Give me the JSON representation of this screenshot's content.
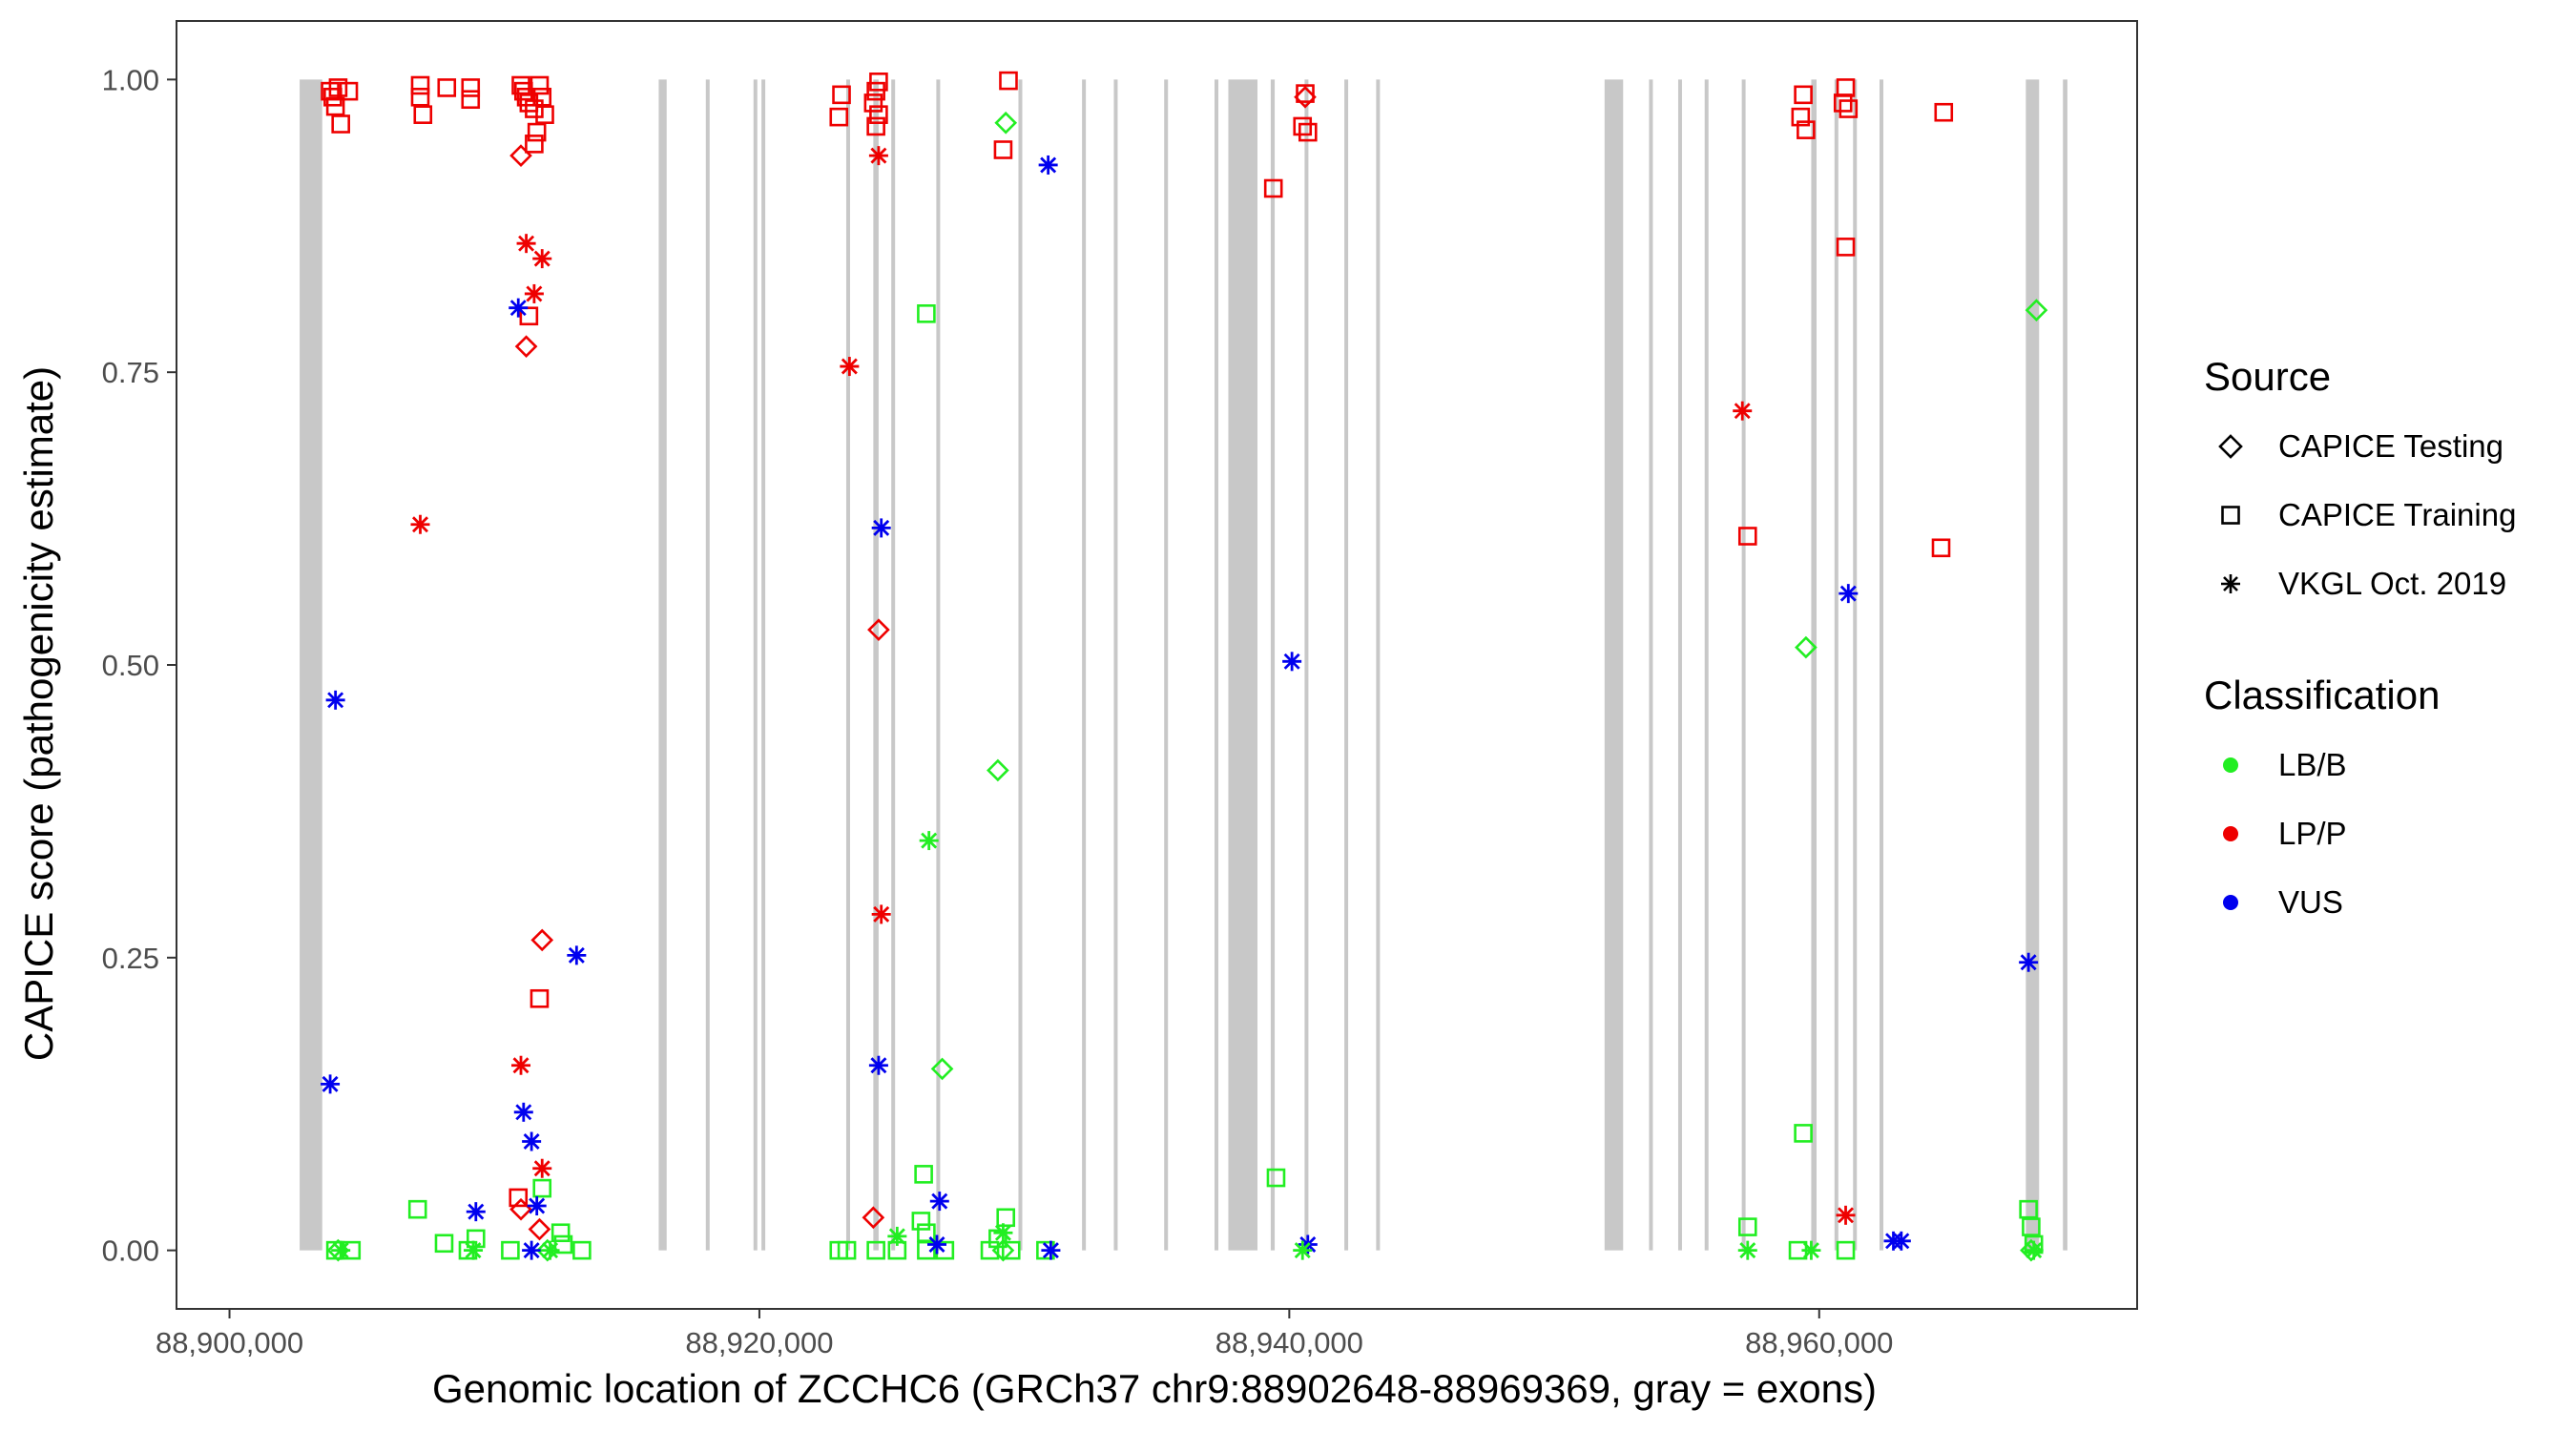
{
  "chart_data": {
    "type": "scatter",
    "title": "",
    "xlabel": "Genomic location of ZCCHC6 (GRCh37 chr9:88902648-88969369, gray = exons)",
    "ylabel": "CAPICE score (pathogenicity estimate)",
    "xlim": [
      88898000,
      88972000
    ],
    "ylim": [
      -0.05,
      1.05
    ],
    "x_ticks": [
      88900000,
      88920000,
      88940000,
      88960000
    ],
    "x_tick_labels": [
      "88,900,000",
      "88,920,000",
      "88,940,000",
      "88,960,000"
    ],
    "y_ticks": [
      0,
      0.25,
      0.5,
      0.75,
      1
    ],
    "y_tick_labels": [
      "0.00",
      "0.25",
      "0.50",
      "0.75",
      "1.00"
    ],
    "exons": [
      [
        88902648,
        88903500
      ],
      [
        88916200,
        88916500
      ],
      [
        88918000,
        88918100
      ],
      [
        88919800,
        88919900
      ],
      [
        88920100,
        88920200
      ],
      [
        88923300,
        88923400
      ],
      [
        88924300,
        88924500
      ],
      [
        88925000,
        88925100
      ],
      [
        88926700,
        88926800
      ],
      [
        88929800,
        88929900
      ],
      [
        88932200,
        88932300
      ],
      [
        88933400,
        88933500
      ],
      [
        88935300,
        88935400
      ],
      [
        88937200,
        88937300
      ],
      [
        88937700,
        88938800
      ],
      [
        88939300,
        88939450
      ],
      [
        88940600,
        88940700
      ],
      [
        88942100,
        88942200
      ],
      [
        88943300,
        88943400
      ],
      [
        88951900,
        88952600
      ],
      [
        88953600,
        88953700
      ],
      [
        88954700,
        88954800
      ],
      [
        88955700,
        88955800
      ],
      [
        88957100,
        88957200
      ],
      [
        88959700,
        88959900
      ],
      [
        88960600,
        88960700
      ],
      [
        88961300,
        88961400
      ],
      [
        88962300,
        88962400
      ],
      [
        88967800,
        88968300
      ],
      [
        88969200,
        88969369
      ]
    ],
    "legend": {
      "source_title": "Source",
      "source_entries": [
        {
          "label": "CAPICE Testing",
          "shape": "diamond"
        },
        {
          "label": "CAPICE Training",
          "shape": "square"
        },
        {
          "label": "VKGL Oct. 2019",
          "shape": "asterisk"
        }
      ],
      "classification_title": "Classification",
      "classification_entries": [
        {
          "label": "LB/B",
          "color": "#22ee22"
        },
        {
          "label": "LP/P",
          "color": "#ee0000"
        },
        {
          "label": "VUS",
          "color": "#0000ee"
        }
      ]
    },
    "series": [
      {
        "name": "CAPICE Testing",
        "shape": "diamond",
        "points": [
          {
            "x": 88911000,
            "y": 0.935,
            "class": "LP/P"
          },
          {
            "x": 88911200,
            "y": 0.772,
            "class": "LP/P"
          },
          {
            "x": 88911800,
            "y": 0.265,
            "class": "LP/P"
          },
          {
            "x": 88911000,
            "y": 0.035,
            "class": "LP/P"
          },
          {
            "x": 88911700,
            "y": 0.018,
            "class": "LP/P"
          },
          {
            "x": 88924500,
            "y": 0.53,
            "class": "LP/P"
          },
          {
            "x": 88924300,
            "y": 0.028,
            "class": "LP/P"
          },
          {
            "x": 88940600,
            "y": 0.985,
            "class": "LP/P"
          },
          {
            "x": 88929300,
            "y": 0.963,
            "class": "LB/B"
          },
          {
            "x": 88929000,
            "y": 0.41,
            "class": "LB/B"
          },
          {
            "x": 88926900,
            "y": 0.155,
            "class": "LB/B"
          },
          {
            "x": 88959500,
            "y": 0.515,
            "class": "LB/B"
          },
          {
            "x": 88968200,
            "y": 0.803,
            "class": "LB/B"
          },
          {
            "x": 88904100,
            "y": 0.0,
            "class": "LB/B"
          },
          {
            "x": 88912000,
            "y": 0.0,
            "class": "LB/B"
          },
          {
            "x": 88929200,
            "y": 0.0,
            "class": "LB/B"
          },
          {
            "x": 88968000,
            "y": 0.0,
            "class": "LB/B"
          }
        ]
      },
      {
        "name": "CAPICE Training",
        "shape": "square",
        "points": [
          {
            "x": 88903800,
            "y": 0.99,
            "class": "LP/P"
          },
          {
            "x": 88903900,
            "y": 0.985,
            "class": "LP/P"
          },
          {
            "x": 88904100,
            "y": 0.993,
            "class": "LP/P"
          },
          {
            "x": 88904500,
            "y": 0.99,
            "class": "LP/P"
          },
          {
            "x": 88904000,
            "y": 0.977,
            "class": "LP/P"
          },
          {
            "x": 88904200,
            "y": 0.962,
            "class": "LP/P"
          },
          {
            "x": 88907200,
            "y": 0.995,
            "class": "LP/P"
          },
          {
            "x": 88907200,
            "y": 0.985,
            "class": "LP/P"
          },
          {
            "x": 88907300,
            "y": 0.97,
            "class": "LP/P"
          },
          {
            "x": 88908200,
            "y": 0.993,
            "class": "LP/P"
          },
          {
            "x": 88909100,
            "y": 0.993,
            "class": "LP/P"
          },
          {
            "x": 88909100,
            "y": 0.983,
            "class": "LP/P"
          },
          {
            "x": 88911000,
            "y": 0.995,
            "class": "LP/P"
          },
          {
            "x": 88911100,
            "y": 0.99,
            "class": "LP/P"
          },
          {
            "x": 88911200,
            "y": 0.985,
            "class": "LP/P"
          },
          {
            "x": 88911300,
            "y": 0.98,
            "class": "LP/P"
          },
          {
            "x": 88911500,
            "y": 0.975,
            "class": "LP/P"
          },
          {
            "x": 88911700,
            "y": 0.995,
            "class": "LP/P"
          },
          {
            "x": 88911800,
            "y": 0.985,
            "class": "LP/P"
          },
          {
            "x": 88911900,
            "y": 0.97,
            "class": "LP/P"
          },
          {
            "x": 88911600,
            "y": 0.955,
            "class": "LP/P"
          },
          {
            "x": 88911500,
            "y": 0.945,
            "class": "LP/P"
          },
          {
            "x": 88911300,
            "y": 0.798,
            "class": "LP/P"
          },
          {
            "x": 88911700,
            "y": 0.215,
            "class": "LP/P"
          },
          {
            "x": 88910900,
            "y": 0.045,
            "class": "LP/P"
          },
          {
            "x": 88923100,
            "y": 0.987,
            "class": "LP/P"
          },
          {
            "x": 88923000,
            "y": 0.968,
            "class": "LP/P"
          },
          {
            "x": 88924500,
            "y": 0.998,
            "class": "LP/P"
          },
          {
            "x": 88924400,
            "y": 0.99,
            "class": "LP/P"
          },
          {
            "x": 88924300,
            "y": 0.98,
            "class": "LP/P"
          },
          {
            "x": 88924500,
            "y": 0.97,
            "class": "LP/P"
          },
          {
            "x": 88924400,
            "y": 0.96,
            "class": "LP/P"
          },
          {
            "x": 88929400,
            "y": 0.999,
            "class": "LP/P"
          },
          {
            "x": 88929200,
            "y": 0.94,
            "class": "LP/P"
          },
          {
            "x": 88939400,
            "y": 0.907,
            "class": "LP/P"
          },
          {
            "x": 88940600,
            "y": 0.988,
            "class": "LP/P"
          },
          {
            "x": 88940500,
            "y": 0.96,
            "class": "LP/P"
          },
          {
            "x": 88940700,
            "y": 0.955,
            "class": "LP/P"
          },
          {
            "x": 88959400,
            "y": 0.987,
            "class": "LP/P"
          },
          {
            "x": 88959300,
            "y": 0.968,
            "class": "LP/P"
          },
          {
            "x": 88959500,
            "y": 0.957,
            "class": "LP/P"
          },
          {
            "x": 88961000,
            "y": 0.993,
            "class": "LP/P"
          },
          {
            "x": 88960900,
            "y": 0.98,
            "class": "LP/P"
          },
          {
            "x": 88961100,
            "y": 0.975,
            "class": "LP/P"
          },
          {
            "x": 88961000,
            "y": 0.857,
            "class": "LP/P"
          },
          {
            "x": 88964700,
            "y": 0.972,
            "class": "LP/P"
          },
          {
            "x": 88957300,
            "y": 0.61,
            "class": "LP/P"
          },
          {
            "x": 88964600,
            "y": 0.6,
            "class": "LP/P"
          },
          {
            "x": 88926300,
            "y": 0.8,
            "class": "LB/B"
          },
          {
            "x": 88926200,
            "y": 0.065,
            "class": "LB/B"
          },
          {
            "x": 88926100,
            "y": 0.025,
            "class": "LB/B"
          },
          {
            "x": 88926300,
            "y": 0.015,
            "class": "LB/B"
          },
          {
            "x": 88929300,
            "y": 0.028,
            "class": "LB/B"
          },
          {
            "x": 88929000,
            "y": 0.01,
            "class": "LB/B"
          },
          {
            "x": 88939500,
            "y": 0.062,
            "class": "LB/B"
          },
          {
            "x": 88907100,
            "y": 0.035,
            "class": "LB/B"
          },
          {
            "x": 88908100,
            "y": 0.006,
            "class": "LB/B"
          },
          {
            "x": 88909300,
            "y": 0.01,
            "class": "LB/B"
          },
          {
            "x": 88911800,
            "y": 0.053,
            "class": "LB/B"
          },
          {
            "x": 88912500,
            "y": 0.015,
            "class": "LB/B"
          },
          {
            "x": 88912600,
            "y": 0.005,
            "class": "LB/B"
          },
          {
            "x": 88959400,
            "y": 0.1,
            "class": "LB/B"
          },
          {
            "x": 88957300,
            "y": 0.02,
            "class": "LB/B"
          },
          {
            "x": 88967900,
            "y": 0.035,
            "class": "LB/B"
          },
          {
            "x": 88968000,
            "y": 0.02,
            "class": "LB/B"
          },
          {
            "x": 88968100,
            "y": 0.005,
            "class": "LB/B"
          },
          {
            "x": 88904000,
            "y": 0.0,
            "class": "LB/B"
          },
          {
            "x": 88904600,
            "y": 0.0,
            "class": "LB/B"
          },
          {
            "x": 88909000,
            "y": 0.0,
            "class": "LB/B"
          },
          {
            "x": 88910600,
            "y": 0.0,
            "class": "LB/B"
          },
          {
            "x": 88913300,
            "y": 0.0,
            "class": "LB/B"
          },
          {
            "x": 88923000,
            "y": 0.0,
            "class": "LB/B"
          },
          {
            "x": 88923300,
            "y": 0.0,
            "class": "LB/B"
          },
          {
            "x": 88924400,
            "y": 0.0,
            "class": "LB/B"
          },
          {
            "x": 88925200,
            "y": 0.0,
            "class": "LB/B"
          },
          {
            "x": 88926300,
            "y": 0.0,
            "class": "LB/B"
          },
          {
            "x": 88927000,
            "y": 0.0,
            "class": "LB/B"
          },
          {
            "x": 88928700,
            "y": 0.0,
            "class": "LB/B"
          },
          {
            "x": 88929500,
            "y": 0.0,
            "class": "LB/B"
          },
          {
            "x": 88930800,
            "y": 0.0,
            "class": "LB/B"
          },
          {
            "x": 88959200,
            "y": 0.0,
            "class": "LB/B"
          },
          {
            "x": 88961000,
            "y": 0.0,
            "class": "LB/B"
          }
        ]
      },
      {
        "name": "VKGL Oct. 2019",
        "shape": "asterisk",
        "points": [
          {
            "x": 88911200,
            "y": 0.86,
            "class": "LP/P"
          },
          {
            "x": 88911800,
            "y": 0.847,
            "class": "LP/P"
          },
          {
            "x": 88911500,
            "y": 0.817,
            "class": "LP/P"
          },
          {
            "x": 88907200,
            "y": 0.62,
            "class": "LP/P"
          },
          {
            "x": 88911000,
            "y": 0.158,
            "class": "LP/P"
          },
          {
            "x": 88911800,
            "y": 0.07,
            "class": "LP/P"
          },
          {
            "x": 88923400,
            "y": 0.755,
            "class": "LP/P"
          },
          {
            "x": 88924500,
            "y": 0.935,
            "class": "LP/P"
          },
          {
            "x": 88924600,
            "y": 0.287,
            "class": "LP/P"
          },
          {
            "x": 88957100,
            "y": 0.717,
            "class": "LP/P"
          },
          {
            "x": 88961000,
            "y": 0.03,
            "class": "LP/P"
          },
          {
            "x": 88904000,
            "y": 0.47,
            "class": "VUS"
          },
          {
            "x": 88903800,
            "y": 0.142,
            "class": "VUS"
          },
          {
            "x": 88910900,
            "y": 0.805,
            "class": "VUS"
          },
          {
            "x": 88913100,
            "y": 0.252,
            "class": "VUS"
          },
          {
            "x": 88911100,
            "y": 0.118,
            "class": "VUS"
          },
          {
            "x": 88911400,
            "y": 0.093,
            "class": "VUS"
          },
          {
            "x": 88909300,
            "y": 0.033,
            "class": "VUS"
          },
          {
            "x": 88911600,
            "y": 0.038,
            "class": "VUS"
          },
          {
            "x": 88911400,
            "y": 0.0,
            "class": "VUS"
          },
          {
            "x": 88930900,
            "y": 0.927,
            "class": "VUS"
          },
          {
            "x": 88924600,
            "y": 0.617,
            "class": "VUS"
          },
          {
            "x": 88924500,
            "y": 0.158,
            "class": "VUS"
          },
          {
            "x": 88926800,
            "y": 0.042,
            "class": "VUS"
          },
          {
            "x": 88926700,
            "y": 0.005,
            "class": "VUS"
          },
          {
            "x": 88931000,
            "y": 0.0,
            "class": "VUS"
          },
          {
            "x": 88940100,
            "y": 0.503,
            "class": "VUS"
          },
          {
            "x": 88940700,
            "y": 0.005,
            "class": "VUS"
          },
          {
            "x": 88961100,
            "y": 0.561,
            "class": "VUS"
          },
          {
            "x": 88962800,
            "y": 0.008,
            "class": "VUS"
          },
          {
            "x": 88963100,
            "y": 0.008,
            "class": "VUS"
          },
          {
            "x": 88967900,
            "y": 0.246,
            "class": "VUS"
          },
          {
            "x": 88926400,
            "y": 0.35,
            "class": "LB/B"
          },
          {
            "x": 88925200,
            "y": 0.012,
            "class": "LB/B"
          },
          {
            "x": 88929200,
            "y": 0.015,
            "class": "LB/B"
          },
          {
            "x": 88904200,
            "y": 0.0,
            "class": "LB/B"
          },
          {
            "x": 88909200,
            "y": 0.0,
            "class": "LB/B"
          },
          {
            "x": 88912100,
            "y": 0.0,
            "class": "LB/B"
          },
          {
            "x": 88940500,
            "y": 0.0,
            "class": "LB/B"
          },
          {
            "x": 88957300,
            "y": 0.0,
            "class": "LB/B"
          },
          {
            "x": 88959700,
            "y": 0.0,
            "class": "LB/B"
          },
          {
            "x": 88968100,
            "y": 0.0,
            "class": "LB/B"
          }
        ]
      }
    ]
  }
}
